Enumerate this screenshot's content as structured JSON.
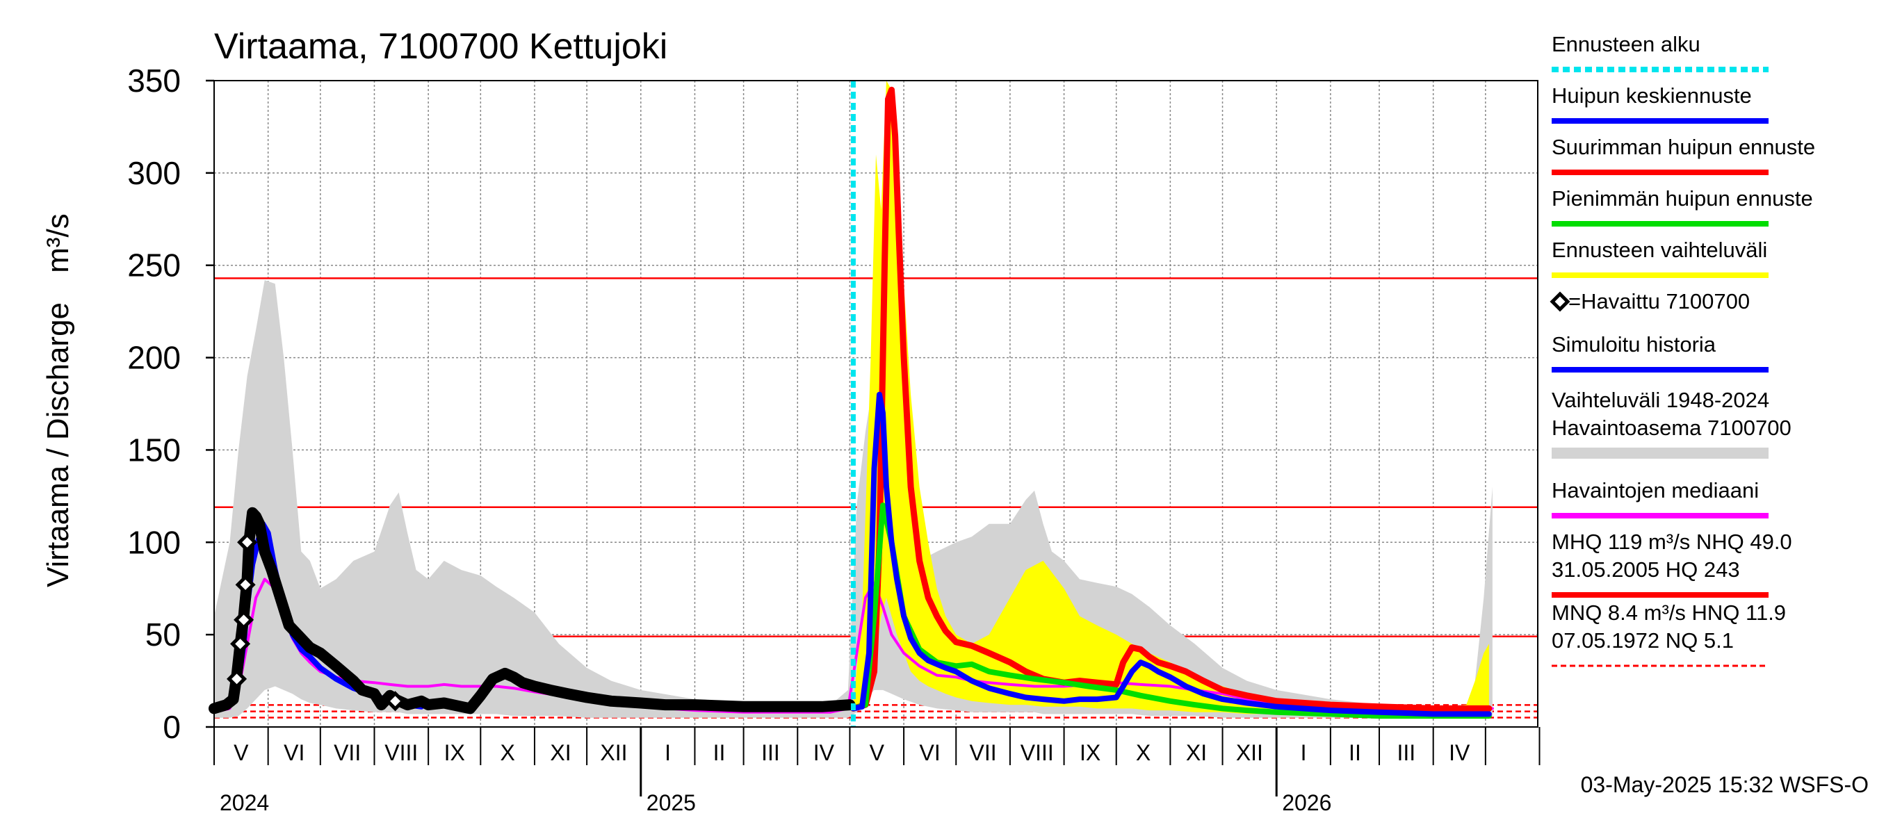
{
  "chart_data": {
    "type": "line",
    "title": "Virtaama, 7100700 Kettujoki",
    "ylabel": "Virtaama / Discharge",
    "yunit": "m³/s",
    "ylim": [
      0,
      350
    ],
    "yticks": [
      "0",
      "50",
      "100",
      "150",
      "200",
      "250",
      "300",
      "350"
    ],
    "x_range": [
      "2024-05-01",
      "2026-05-31"
    ],
    "month_labels": [
      "V",
      "VI",
      "VII",
      "VIII",
      "IX",
      "X",
      "XI",
      "XII",
      "I",
      "II",
      "III",
      "IV",
      "V",
      "VI",
      "VII",
      "VIII",
      "IX",
      "X",
      "XI",
      "XII",
      "I",
      "II",
      "III",
      "IV"
    ],
    "year_labels": [
      "2024",
      "2025",
      "2026"
    ],
    "grid": true,
    "forecast_start": "2025-05-03",
    "reference_lines": [
      {
        "name": "HQ",
        "value": 243,
        "style": "solid",
        "color": "#ff0000"
      },
      {
        "name": "MHQ",
        "value": 119,
        "style": "solid",
        "color": "#ff0000"
      },
      {
        "name": "NHQ",
        "value": 49,
        "style": "solid",
        "color": "#ff0000"
      },
      {
        "name": "HNQ",
        "value": 11.9,
        "style": "dashed",
        "color": "#ff0000"
      },
      {
        "name": "MNQ",
        "value": 8.4,
        "style": "dashed",
        "color": "#ff0000"
      },
      {
        "name": "NQ",
        "value": 5.1,
        "style": "dashed",
        "color": "#ff0000"
      }
    ],
    "history_range": {
      "name": "Vaihteluväli 1948-2024 Havaintoasema 7100700",
      "color": "#d3d3d3",
      "x": [
        "2024-05-01",
        "2024-05-10",
        "2024-05-15",
        "2024-05-20",
        "2024-05-25",
        "2024-05-30",
        "2024-06-05",
        "2024-06-10",
        "2024-06-15",
        "2024-06-20",
        "2024-06-25",
        "2024-07-01",
        "2024-07-10",
        "2024-07-20",
        "2024-08-01",
        "2024-08-10",
        "2024-08-15",
        "2024-08-20",
        "2024-08-25",
        "2024-09-01",
        "2024-09-10",
        "2024-09-20",
        "2024-10-01",
        "2024-10-10",
        "2024-10-20",
        "2024-11-01",
        "2024-11-15",
        "2024-12-01",
        "2024-12-15",
        "2025-01-01",
        "2025-02-01",
        "2025-03-01",
        "2025-04-01",
        "2025-04-20",
        "2025-04-30",
        "2025-05-05",
        "2025-05-10",
        "2025-05-15",
        "2025-05-20",
        "2025-05-25",
        "2025-06-01",
        "2025-06-10",
        "2025-06-20",
        "2025-07-01",
        "2025-07-10",
        "2025-07-20",
        "2025-08-01",
        "2025-08-10",
        "2025-08-15",
        "2025-08-20",
        "2025-08-25",
        "2025-09-01",
        "2025-09-10",
        "2025-09-20",
        "2025-10-01",
        "2025-10-10",
        "2025-10-20",
        "2025-11-01",
        "2025-11-15",
        "2025-12-01",
        "2025-12-15",
        "2026-01-01",
        "2026-02-01",
        "2026-03-01",
        "2026-04-01",
        "2026-04-20",
        "2026-04-25",
        "2026-04-30",
        "2026-05-05"
      ],
      "max": [
        60,
        100,
        150,
        190,
        215,
        242,
        240,
        200,
        150,
        95,
        90,
        75,
        80,
        90,
        95,
        120,
        127,
        105,
        85,
        80,
        90,
        85,
        82,
        76,
        70,
        62,
        45,
        32,
        25,
        20,
        15,
        12,
        11,
        12,
        20,
        120,
        160,
        190,
        175,
        150,
        110,
        90,
        95,
        100,
        103,
        110,
        110,
        123,
        128,
        110,
        95,
        90,
        80,
        78,
        76,
        72,
        65,
        55,
        45,
        32,
        25,
        20,
        15,
        12,
        11,
        12,
        25,
        70,
        130
      ],
      "min": [
        5,
        5,
        6,
        10,
        15,
        20,
        22,
        20,
        18,
        15,
        13,
        12,
        10,
        9,
        8,
        8,
        8,
        7,
        7,
        7,
        7,
        7,
        7,
        7,
        6,
        6,
        6,
        5,
        5,
        5,
        5,
        5,
        5,
        5,
        5,
        8,
        15,
        20,
        20,
        18,
        15,
        12,
        10,
        9,
        8,
        8,
        8,
        8,
        8,
        7,
        7,
        7,
        7,
        7,
        7,
        7,
        6,
        6,
        6,
        5,
        5,
        5,
        5,
        5,
        5,
        5,
        5,
        5,
        6
      ]
    },
    "series": [
      {
        "name": "Ennusteen vaihteluväli",
        "kind": "band",
        "color": "#ffff00",
        "x": [
          "2025-05-03",
          "2025-05-08",
          "2025-05-13",
          "2025-05-16",
          "2025-05-19",
          "2025-05-22",
          "2025-05-25",
          "2025-05-28",
          "2025-06-01",
          "2025-06-05",
          "2025-06-10",
          "2025-06-15",
          "2025-06-20",
          "2025-06-25",
          "2025-07-01",
          "2025-07-10",
          "2025-07-20",
          "2025-08-01",
          "2025-08-10",
          "2025-08-20",
          "2025-09-01",
          "2025-09-10",
          "2025-09-20",
          "2025-10-01",
          "2025-10-10",
          "2025-10-20",
          "2025-11-01",
          "2025-11-15",
          "2025-12-01",
          "2025-12-15",
          "2026-01-01",
          "2026-02-01",
          "2026-03-01",
          "2026-04-01",
          "2026-04-20",
          "2026-04-25",
          "2026-04-30",
          "2026-05-03"
        ],
        "max": [
          12,
          60,
          200,
          310,
          280,
          350,
          345,
          300,
          240,
          180,
          130,
          100,
          75,
          60,
          50,
          45,
          50,
          70,
          85,
          90,
          75,
          60,
          55,
          50,
          45,
          40,
          35,
          28,
          22,
          18,
          15,
          12,
          10,
          10,
          12,
          25,
          40,
          45
        ],
        "min": [
          12,
          12,
          20,
          40,
          60,
          70,
          60,
          50,
          40,
          30,
          25,
          22,
          20,
          18,
          16,
          14,
          13,
          12,
          12,
          11,
          11,
          11,
          10,
          10,
          10,
          9,
          9,
          8,
          8,
          7,
          7,
          6,
          6,
          6,
          6,
          6,
          6,
          6
        ]
      },
      {
        "name": "Havaintojen mediaani",
        "kind": "line",
        "color": "#ff00ff",
        "x": [
          "2024-05-01",
          "2024-05-10",
          "2024-05-15",
          "2024-05-20",
          "2024-05-25",
          "2024-05-30",
          "2024-06-05",
          "2024-06-10",
          "2024-06-15",
          "2024-06-20",
          "2024-06-25",
          "2024-07-01",
          "2024-07-10",
          "2024-07-20",
          "2024-08-01",
          "2024-08-10",
          "2024-08-20",
          "2024-09-01",
          "2024-09-10",
          "2024-09-20",
          "2024-10-01",
          "2024-10-10",
          "2024-10-20",
          "2024-11-01",
          "2024-11-15",
          "2024-12-01",
          "2024-12-15",
          "2025-01-01",
          "2025-02-01",
          "2025-03-01",
          "2025-04-01",
          "2025-04-20",
          "2025-04-30",
          "2025-05-05",
          "2025-05-10",
          "2025-05-15",
          "2025-05-20",
          "2025-05-25",
          "2025-06-01",
          "2025-06-10",
          "2025-06-20",
          "2025-07-01",
          "2025-07-10",
          "2025-07-20",
          "2025-08-01",
          "2025-08-15",
          "2025-09-01",
          "2025-09-15",
          "2025-10-01",
          "2025-10-15",
          "2025-11-01",
          "2025-11-15",
          "2025-12-01",
          "2025-12-15",
          "2026-01-01",
          "2026-02-01",
          "2026-03-01",
          "2026-04-01",
          "2026-04-20",
          "2026-04-30",
          "2026-05-05"
        ],
        "y": [
          8,
          10,
          20,
          45,
          70,
          80,
          75,
          60,
          48,
          40,
          35,
          30,
          27,
          25,
          24,
          23,
          22,
          22,
          23,
          22,
          22,
          22,
          21,
          19,
          17,
          15,
          13,
          11,
          9,
          8,
          8,
          8,
          10,
          40,
          70,
          78,
          65,
          50,
          40,
          33,
          28,
          27,
          25,
          24,
          23,
          22,
          22,
          23,
          24,
          23,
          22,
          20,
          18,
          15,
          12,
          10,
          9,
          8,
          8,
          9,
          10
        ]
      },
      {
        "name": "Suurimman huipun ennuste",
        "kind": "line",
        "color": "#ff0000",
        "x": [
          "2025-05-03",
          "2025-05-10",
          "2025-05-15",
          "2025-05-18",
          "2025-05-21",
          "2025-05-23",
          "2025-05-25",
          "2025-05-27",
          "2025-05-29",
          "2025-06-01",
          "2025-06-05",
          "2025-06-10",
          "2025-06-15",
          "2025-06-20",
          "2025-06-25",
          "2025-07-01",
          "2025-07-10",
          "2025-07-20",
          "2025-08-01",
          "2025-08-10",
          "2025-08-20",
          "2025-09-01",
          "2025-09-10",
          "2025-09-20",
          "2025-10-01",
          "2025-10-05",
          "2025-10-10",
          "2025-10-15",
          "2025-10-20",
          "2025-10-25",
          "2025-11-01",
          "2025-11-10",
          "2025-11-20",
          "2025-12-01",
          "2025-12-15",
          "2026-01-01",
          "2026-02-01",
          "2026-03-01",
          "2026-04-01",
          "2026-04-20",
          "2026-05-03"
        ],
        "y": [
          10,
          12,
          30,
          100,
          250,
          340,
          345,
          320,
          270,
          200,
          130,
          90,
          70,
          60,
          52,
          46,
          44,
          40,
          35,
          30,
          26,
          24,
          25,
          24,
          23,
          35,
          43,
          42,
          38,
          35,
          33,
          30,
          25,
          20,
          17,
          14,
          12,
          11,
          10,
          10,
          10
        ]
      },
      {
        "name": "Pienimmän huipun ennuste",
        "kind": "line",
        "color": "#00dd00",
        "x": [
          "2025-05-03",
          "2025-05-10",
          "2025-05-15",
          "2025-05-20",
          "2025-05-25",
          "2025-06-01",
          "2025-06-10",
          "2025-06-20",
          "2025-07-01",
          "2025-07-10",
          "2025-07-20",
          "2025-08-01",
          "2025-08-15",
          "2025-09-01",
          "2025-09-15",
          "2025-10-01",
          "2025-10-15",
          "2025-11-01",
          "2025-11-15",
          "2025-12-01",
          "2025-12-15",
          "2026-01-01",
          "2026-02-01",
          "2026-03-01",
          "2026-04-01",
          "2026-04-20",
          "2026-05-03"
        ],
        "y": [
          10,
          12,
          60,
          120,
          100,
          60,
          42,
          35,
          33,
          34,
          30,
          28,
          26,
          24,
          22,
          20,
          17,
          14,
          12,
          10,
          9,
          8,
          7,
          6,
          6,
          6,
          6
        ]
      },
      {
        "name": "Huipun keskiennuste",
        "kind": "line",
        "color": "#0000ff",
        "x": [
          "2025-05-03",
          "2025-05-08",
          "2025-05-12",
          "2025-05-15",
          "2025-05-18",
          "2025-05-20",
          "2025-05-22",
          "2025-05-25",
          "2025-05-28",
          "2025-06-01",
          "2025-06-05",
          "2025-06-10",
          "2025-06-15",
          "2025-06-20",
          "2025-06-25",
          "2025-07-01",
          "2025-07-10",
          "2025-07-20",
          "2025-08-01",
          "2025-08-10",
          "2025-08-20",
          "2025-09-01",
          "2025-09-10",
          "2025-09-20",
          "2025-10-01",
          "2025-10-05",
          "2025-10-10",
          "2025-10-15",
          "2025-10-20",
          "2025-10-25",
          "2025-11-01",
          "2025-11-10",
          "2025-11-20",
          "2025-12-01",
          "2025-12-15",
          "2026-01-01",
          "2026-02-01",
          "2026-03-01",
          "2026-04-01",
          "2026-04-20",
          "2026-05-03"
        ],
        "y": [
          10,
          11,
          40,
          140,
          180,
          170,
          130,
          100,
          80,
          60,
          48,
          40,
          36,
          34,
          32,
          30,
          25,
          21,
          18,
          16,
          15,
          14,
          15,
          15,
          16,
          22,
          30,
          35,
          33,
          30,
          27,
          22,
          18,
          15,
          13,
          11,
          9,
          8,
          7,
          7,
          7
        ]
      },
      {
        "name": "Simuloitu historia",
        "kind": "line",
        "color": "#0000ff",
        "x": [
          "2024-05-01",
          "2024-05-08",
          "2024-05-12",
          "2024-05-15",
          "2024-05-18",
          "2024-05-20",
          "2024-05-23",
          "2024-05-26",
          "2024-05-29",
          "2024-06-01",
          "2024-06-05",
          "2024-06-10",
          "2024-06-15",
          "2024-06-20",
          "2024-06-25",
          "2024-07-01",
          "2024-07-10",
          "2024-07-20",
          "2024-08-01",
          "2024-08-10",
          "2024-08-20",
          "2024-08-28"
        ],
        "y": [
          10,
          12,
          15,
          25,
          45,
          65,
          88,
          100,
          110,
          105,
          85,
          65,
          50,
          42,
          38,
          32,
          26,
          21,
          17,
          14,
          12,
          11
        ]
      },
      {
        "name": "Havaittu 7100700",
        "kind": "observed",
        "color": "#000000",
        "x": [
          "2024-05-01",
          "2024-05-08",
          "2024-05-12",
          "2024-05-14",
          "2024-05-16",
          "2024-05-18",
          "2024-05-20",
          "2024-05-21",
          "2024-05-23",
          "2024-05-25",
          "2024-05-27",
          "2024-05-30",
          "2024-06-03",
          "2024-06-08",
          "2024-06-13",
          "2024-06-18",
          "2024-06-25",
          "2024-07-01",
          "2024-07-10",
          "2024-07-20",
          "2024-07-25",
          "2024-08-01",
          "2024-08-05",
          "2024-08-10",
          "2024-08-13",
          "2024-08-20",
          "2024-08-28",
          "2024-09-01",
          "2024-09-10",
          "2024-09-20",
          "2024-09-25",
          "2024-10-01",
          "2024-10-08",
          "2024-10-15",
          "2024-10-20",
          "2024-10-25",
          "2024-11-01",
          "2024-11-10",
          "2024-11-20",
          "2024-12-01",
          "2024-12-15",
          "2025-01-01",
          "2025-01-15",
          "2025-02-01",
          "2025-03-01",
          "2025-04-01",
          "2025-04-15",
          "2025-05-01"
        ],
        "y": [
          10,
          12,
          15,
          28,
          45,
          60,
          80,
          100,
          116,
          114,
          110,
          95,
          85,
          70,
          55,
          50,
          43,
          40,
          33,
          25,
          20,
          18,
          12,
          17,
          15,
          12,
          14,
          12,
          13,
          11,
          10,
          17,
          26,
          29,
          27,
          24,
          22,
          20,
          18,
          16,
          14,
          13,
          12,
          12,
          11,
          11,
          11,
          12
        ],
        "markers": [
          {
            "x": "2024-05-14",
            "y": 26
          },
          {
            "x": "2024-05-16",
            "y": 45
          },
          {
            "x": "2024-05-18",
            "y": 58
          },
          {
            "x": "2024-05-19",
            "y": 77
          },
          {
            "x": "2024-05-20",
            "y": 100
          },
          {
            "x": "2024-08-13",
            "y": 14
          }
        ]
      }
    ],
    "legend_placement": "right",
    "legend": [
      {
        "label": "Ennusteen alku",
        "color": "#00e5ee",
        "style": "dotted"
      },
      {
        "label": "Huipun keskiennuste",
        "color": "#0000ff",
        "style": "solid"
      },
      {
        "label": "Suurimman huipun ennuste",
        "color": "#ff0000",
        "style": "solid"
      },
      {
        "label": "Pienimmän huipun ennuste",
        "color": "#00dd00",
        "style": "solid"
      },
      {
        "label": "Ennusteen vaihteluväli",
        "color": "#ffff00",
        "style": "solid"
      },
      {
        "label": "=Havaittu 7100700",
        "color": "#000000",
        "style": "marker"
      },
      {
        "label": "Simuloitu historia",
        "color": "#0000ff",
        "style": "solid"
      },
      {
        "label": "Vaihteluväli 1948-2024",
        "label2": " Havaintoasema 7100700",
        "color": "#d3d3d3",
        "style": "thick"
      },
      {
        "label": "Havaintojen mediaani",
        "color": "#ff00ff",
        "style": "solid"
      },
      {
        "label": "MHQ  119 m³/s NHQ 49.0",
        "label2": "31.05.2005 HQ  243",
        "color": "#ff0000",
        "style": "solid"
      },
      {
        "label": "MNQ  8.4 m³/s HNQ 11.9",
        "label2": "07.05.1972 NQ  5.1",
        "color": "#ff0000",
        "style": "dashed"
      }
    ],
    "footer": "03-May-2025 15:32 WSFS-O"
  }
}
